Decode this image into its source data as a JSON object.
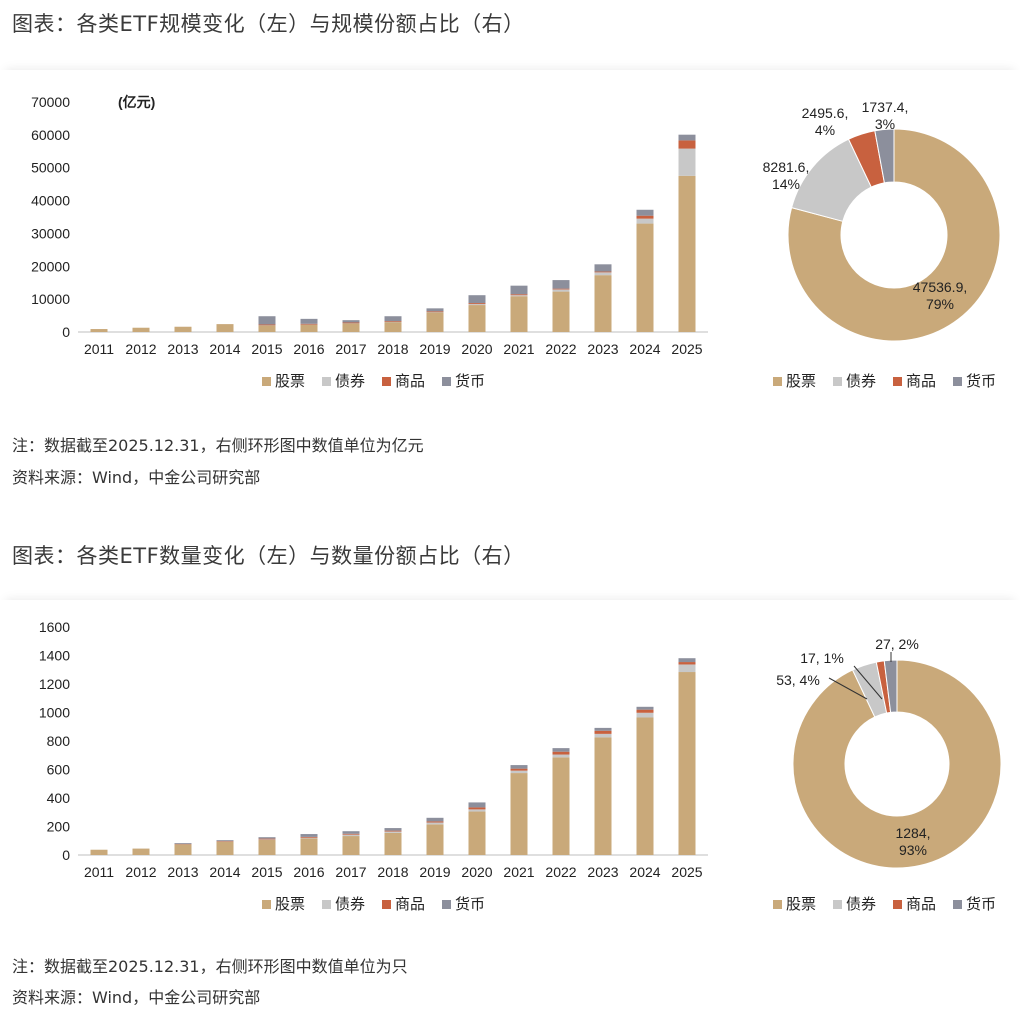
{
  "figures": [
    {
      "title": "图表：各类ETF规模变化（左）与规模份额占比（右）",
      "note": "注：数据截至2025.12.31，右侧环形图中数值单位为亿元",
      "source": "资料来源：Wind，中金公司研究部"
    },
    {
      "title": "图表：各类ETF数量变化（左）与数量份额占比（右）",
      "note": "注：数据截至2025.12.31，右侧环形图中数值单位为只",
      "source": "资料来源：Wind，中金公司研究部"
    }
  ],
  "chart_data": [
    {
      "type": "bar",
      "stacked": true,
      "unit_label": "(亿元)",
      "categories": [
        "2011",
        "2012",
        "2013",
        "2014",
        "2015",
        "2016",
        "2017",
        "2018",
        "2019",
        "2020",
        "2021",
        "2022",
        "2023",
        "2024",
        "2025"
      ],
      "ylim": [
        0,
        70000
      ],
      "yticks": [
        0,
        10000,
        20000,
        30000,
        40000,
        50000,
        60000,
        70000
      ],
      "series": [
        {
          "name": "股票",
          "color": "#C9A97A",
          "values": [
            900,
            1300,
            1600,
            2400,
            2100,
            2300,
            2700,
            3100,
            6000,
            8200,
            10900,
            12300,
            17300,
            33000,
            47536.9
          ]
        },
        {
          "name": "债券",
          "color": "#C8C8C8",
          "values": [
            0,
            0,
            0,
            0,
            100,
            100,
            100,
            100,
            200,
            300,
            300,
            700,
            900,
            1500,
            8281.6
          ]
        },
        {
          "name": "商品",
          "color": "#C8613F",
          "values": [
            0,
            0,
            0,
            0,
            100,
            100,
            100,
            100,
            100,
            300,
            300,
            200,
            200,
            900,
            2495.6
          ]
        },
        {
          "name": "货币",
          "color": "#8C8F9C",
          "values": [
            0,
            0,
            0,
            0,
            2500,
            1500,
            700,
            1500,
            900,
            2400,
            2600,
            2600,
            2200,
            1800,
            1737.4
          ]
        }
      ]
    },
    {
      "type": "pie",
      "donut": true,
      "slices": [
        {
          "name": "股票",
          "value": 47536.9,
          "pct": "79%",
          "label": "47536.9,",
          "label2": "79%",
          "color": "#C9A97A"
        },
        {
          "name": "债券",
          "value": 8281.6,
          "pct": "14%",
          "label": "8281.6,",
          "label2": "14%",
          "color": "#C8C8C8"
        },
        {
          "name": "商品",
          "value": 2495.6,
          "pct": "4%",
          "label": "2495.6,",
          "label2": "4%",
          "color": "#C8613F"
        },
        {
          "name": "货币",
          "value": 1737.4,
          "pct": "3%",
          "label": "1737.4,",
          "label2": "3%",
          "color": "#8C8F9C"
        }
      ]
    },
    {
      "type": "bar",
      "stacked": true,
      "categories": [
        "2011",
        "2012",
        "2013",
        "2014",
        "2015",
        "2016",
        "2017",
        "2018",
        "2019",
        "2020",
        "2021",
        "2022",
        "2023",
        "2024",
        "2025"
      ],
      "ylim": [
        0,
        1600
      ],
      "yticks": [
        0,
        200,
        400,
        600,
        800,
        1000,
        1200,
        1400,
        1600
      ],
      "series": [
        {
          "name": "股票",
          "color": "#C9A97A",
          "values": [
            37,
            45,
            78,
            96,
            107,
            117,
            133,
            155,
            215,
            305,
            575,
            685,
            825,
            965,
            1284
          ]
        },
        {
          "name": "债券",
          "color": "#C8C8C8",
          "values": [
            0,
            0,
            1,
            2,
            4,
            5,
            10,
            10,
            13,
            15,
            17,
            20,
            25,
            33,
            53
          ]
        },
        {
          "name": "商品",
          "color": "#C8613F",
          "values": [
            0,
            0,
            2,
            3,
            4,
            5,
            6,
            6,
            8,
            14,
            14,
            20,
            22,
            22,
            17
          ]
        },
        {
          "name": "货币",
          "color": "#8C8F9C",
          "values": [
            0,
            0,
            2,
            3,
            10,
            20,
            18,
            18,
            25,
            35,
            25,
            25,
            20,
            20,
            27
          ]
        }
      ]
    },
    {
      "type": "pie",
      "donut": true,
      "slices": [
        {
          "name": "股票",
          "value": 1284,
          "pct": "93%",
          "label": "1284,",
          "label2": "93%",
          "color": "#C9A97A"
        },
        {
          "name": "债券",
          "value": 53,
          "pct": "4%",
          "label": "53, 4%",
          "label2": "",
          "color": "#C8C8C8"
        },
        {
          "name": "商品",
          "value": 17,
          "pct": "1%",
          "label": "17, 1%",
          "label2": "",
          "color": "#C8613F"
        },
        {
          "name": "货币",
          "value": 27,
          "pct": "2%",
          "label": "27, 2%",
          "label2": "",
          "color": "#8C8F9C"
        }
      ]
    }
  ]
}
